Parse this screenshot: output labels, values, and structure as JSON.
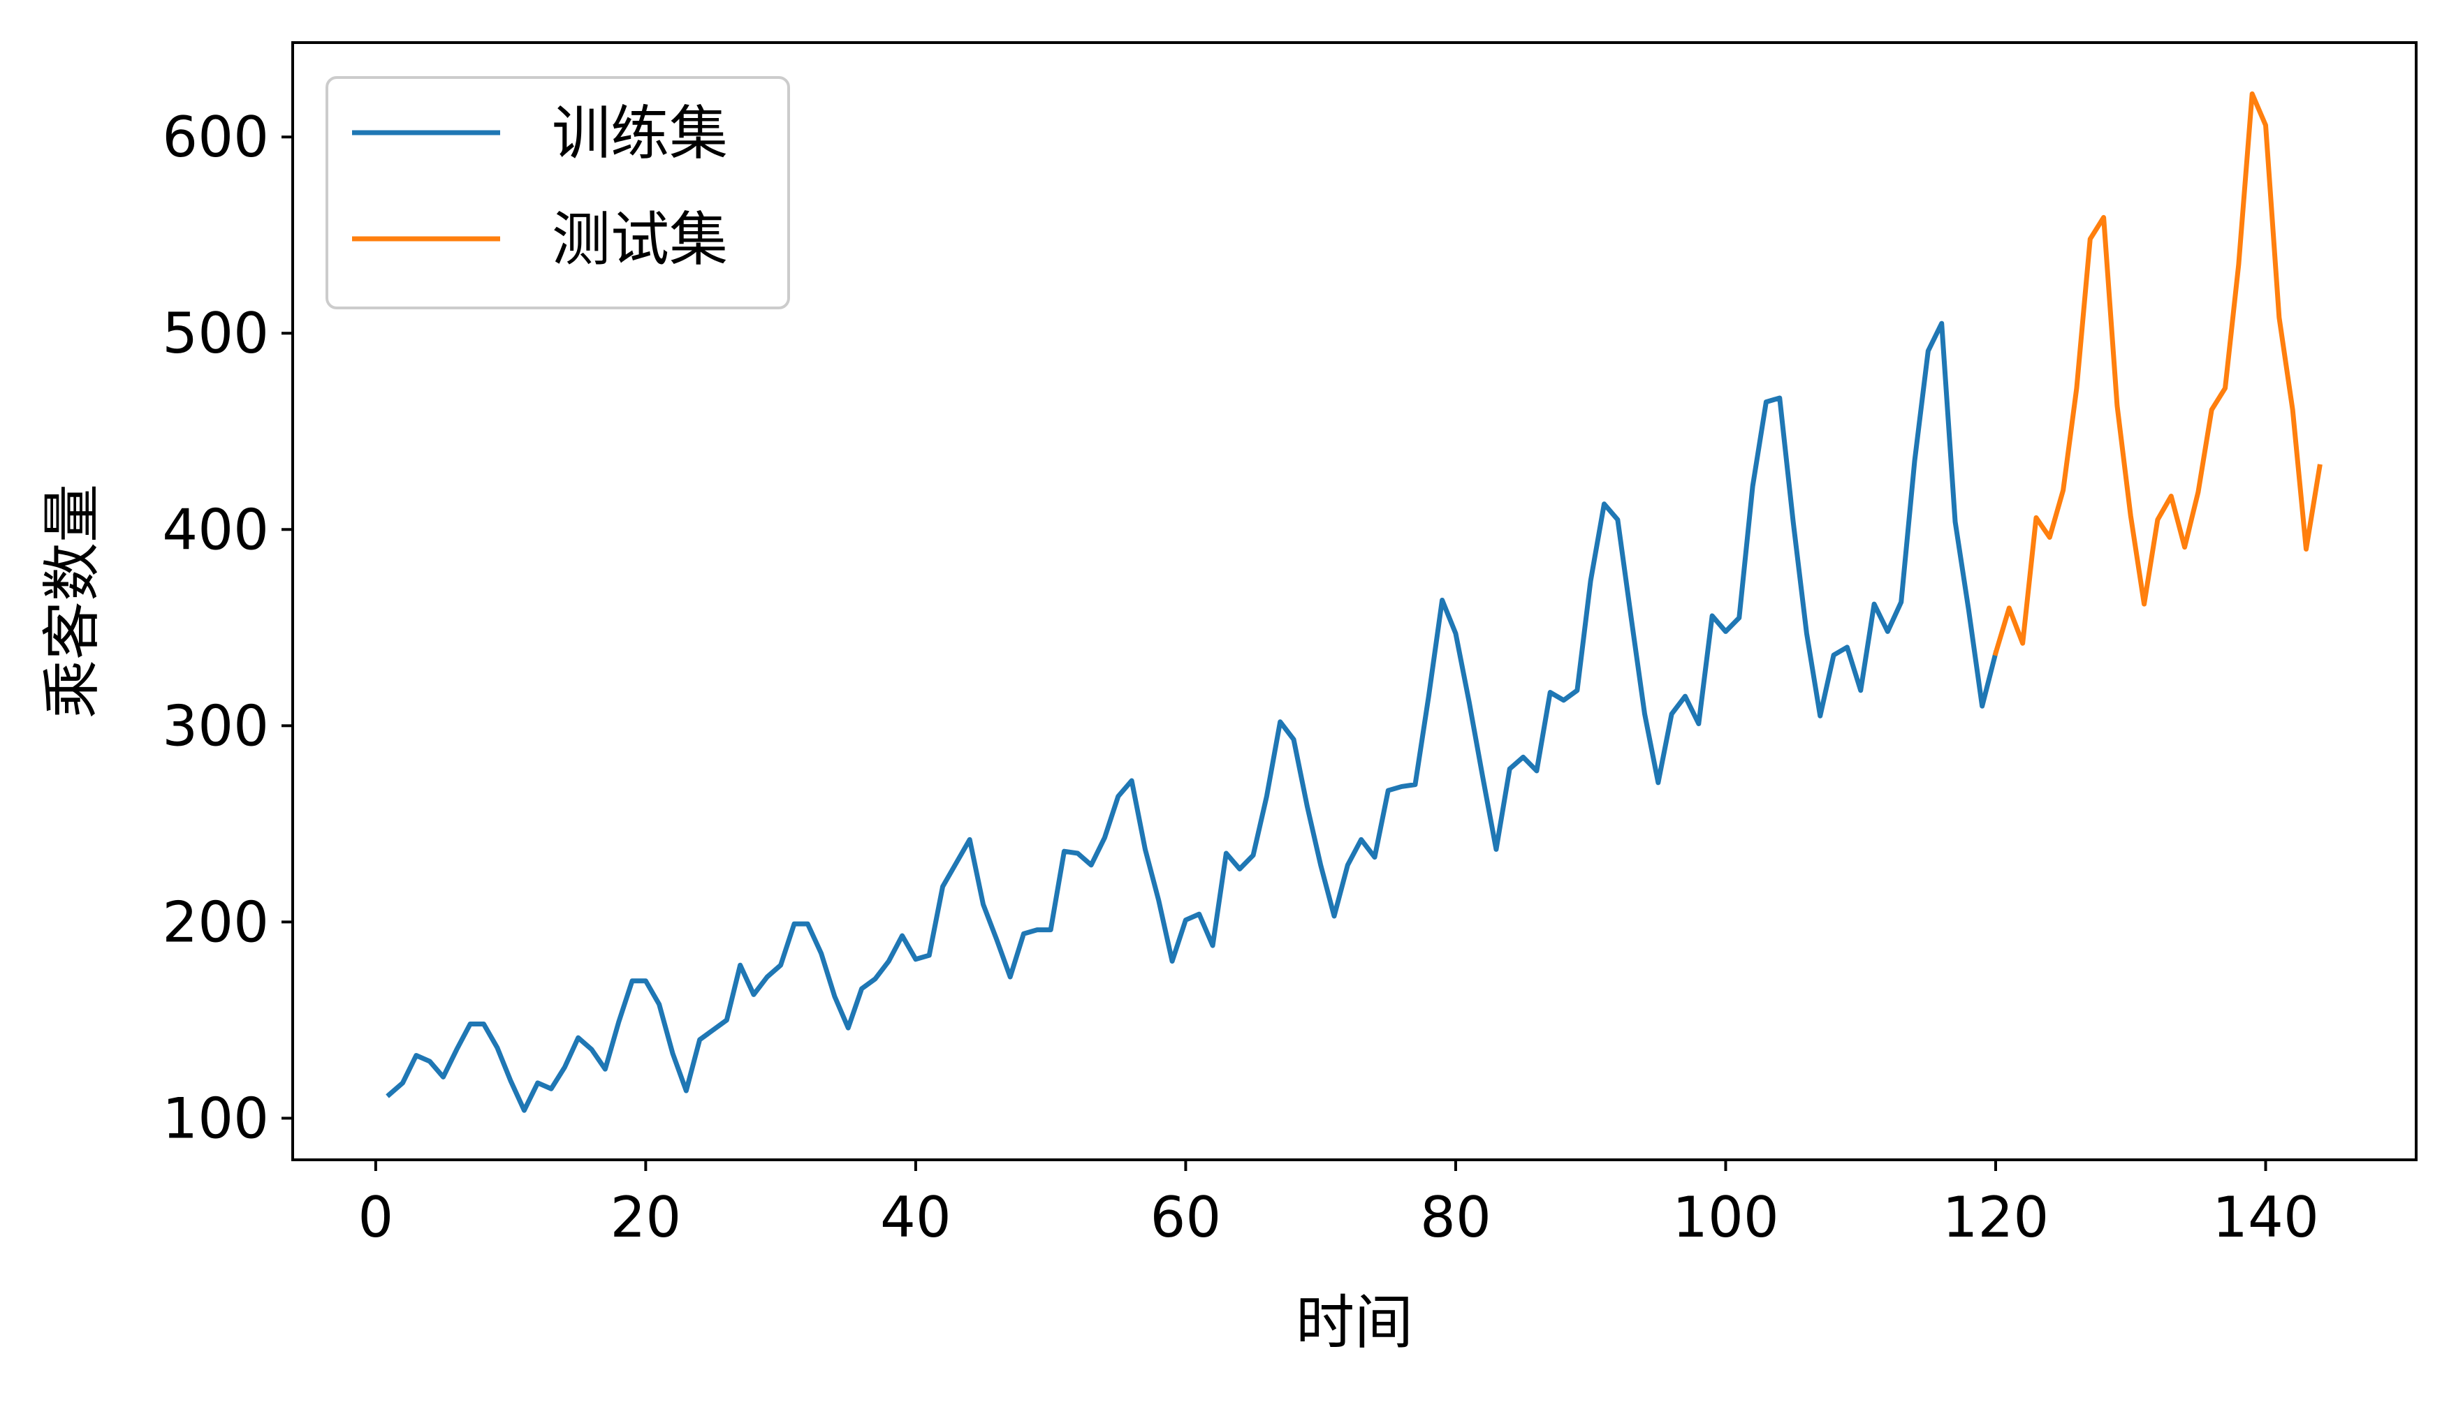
{
  "chart_data": {
    "type": "line",
    "title": "",
    "xlabel": "时间",
    "ylabel": "乘客数量",
    "xlim": [
      -6.15,
      151.15
    ],
    "ylim": [
      78.8,
      648.1
    ],
    "xticks": [
      0,
      20,
      40,
      60,
      80,
      100,
      120,
      140
    ],
    "yticks": [
      100,
      200,
      300,
      400,
      500,
      600
    ],
    "grid": false,
    "legend": "upper-left",
    "series": [
      {
        "name": "训练集",
        "color": "#1f77b4",
        "x_start": 1,
        "values": [
          112,
          118,
          132,
          129,
          121,
          135,
          148,
          148,
          136,
          119,
          104,
          118,
          115,
          126,
          141,
          135,
          125,
          149,
          170,
          170,
          158,
          133,
          114,
          140,
          145,
          150,
          178,
          163,
          172,
          178,
          199,
          199,
          184,
          162,
          146,
          166,
          171,
          180,
          193,
          181,
          183,
          218,
          230,
          242,
          209,
          191,
          172,
          194,
          196,
          196,
          236,
          235,
          229,
          243,
          264,
          272,
          237,
          211,
          180,
          201,
          204,
          188,
          235,
          227,
          234,
          264,
          302,
          293,
          259,
          229,
          203,
          229,
          242,
          233,
          267,
          269,
          270,
          315,
          364,
          347,
          312,
          274,
          237,
          278,
          284,
          277,
          317,
          313,
          318,
          374,
          413,
          405,
          355,
          306,
          271,
          306,
          315,
          301,
          356,
          348,
          355,
          422,
          465,
          467,
          404,
          347,
          305,
          336,
          340,
          318,
          362,
          348,
          363,
          435,
          491,
          505,
          404,
          359,
          310,
          337
        ]
      },
      {
        "name": "测试集",
        "color": "#ff7f0e",
        "x_start": 120,
        "values": [
          337,
          360,
          342,
          406,
          396,
          420,
          472,
          548,
          559,
          463,
          407,
          362,
          405,
          417,
          391,
          419,
          461,
          472,
          535,
          622,
          606,
          508,
          461,
          390,
          432
        ]
      }
    ]
  }
}
